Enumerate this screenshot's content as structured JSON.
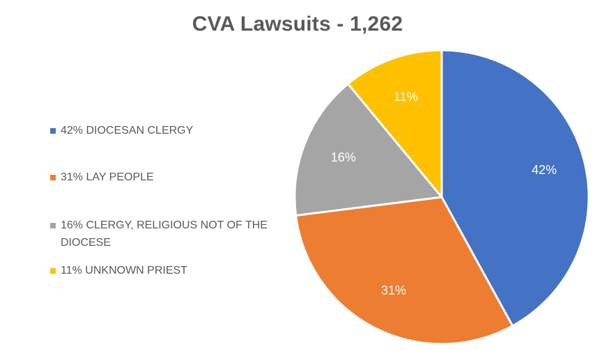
{
  "chart_data": {
    "type": "pie",
    "title": "CVA Lawsuits - 1,262",
    "legend_position": "left",
    "slices": [
      {
        "label": "42% DIOCESAN CLERGY",
        "value": 42,
        "data_label": "42%",
        "color": "#4472C4"
      },
      {
        "label": "31% LAY PEOPLE",
        "value": 31,
        "data_label": "31%",
        "color": "#ED7D31"
      },
      {
        "label": "16% CLERGY, RELIGIOUS NOT OF THE DIOCESE",
        "value": 16,
        "data_label": "16%",
        "color": "#A5A5A5"
      },
      {
        "label": "11% UNKNOWN PRIEST",
        "value": 11,
        "data_label": "11%",
        "color": "#FFC000"
      }
    ]
  }
}
